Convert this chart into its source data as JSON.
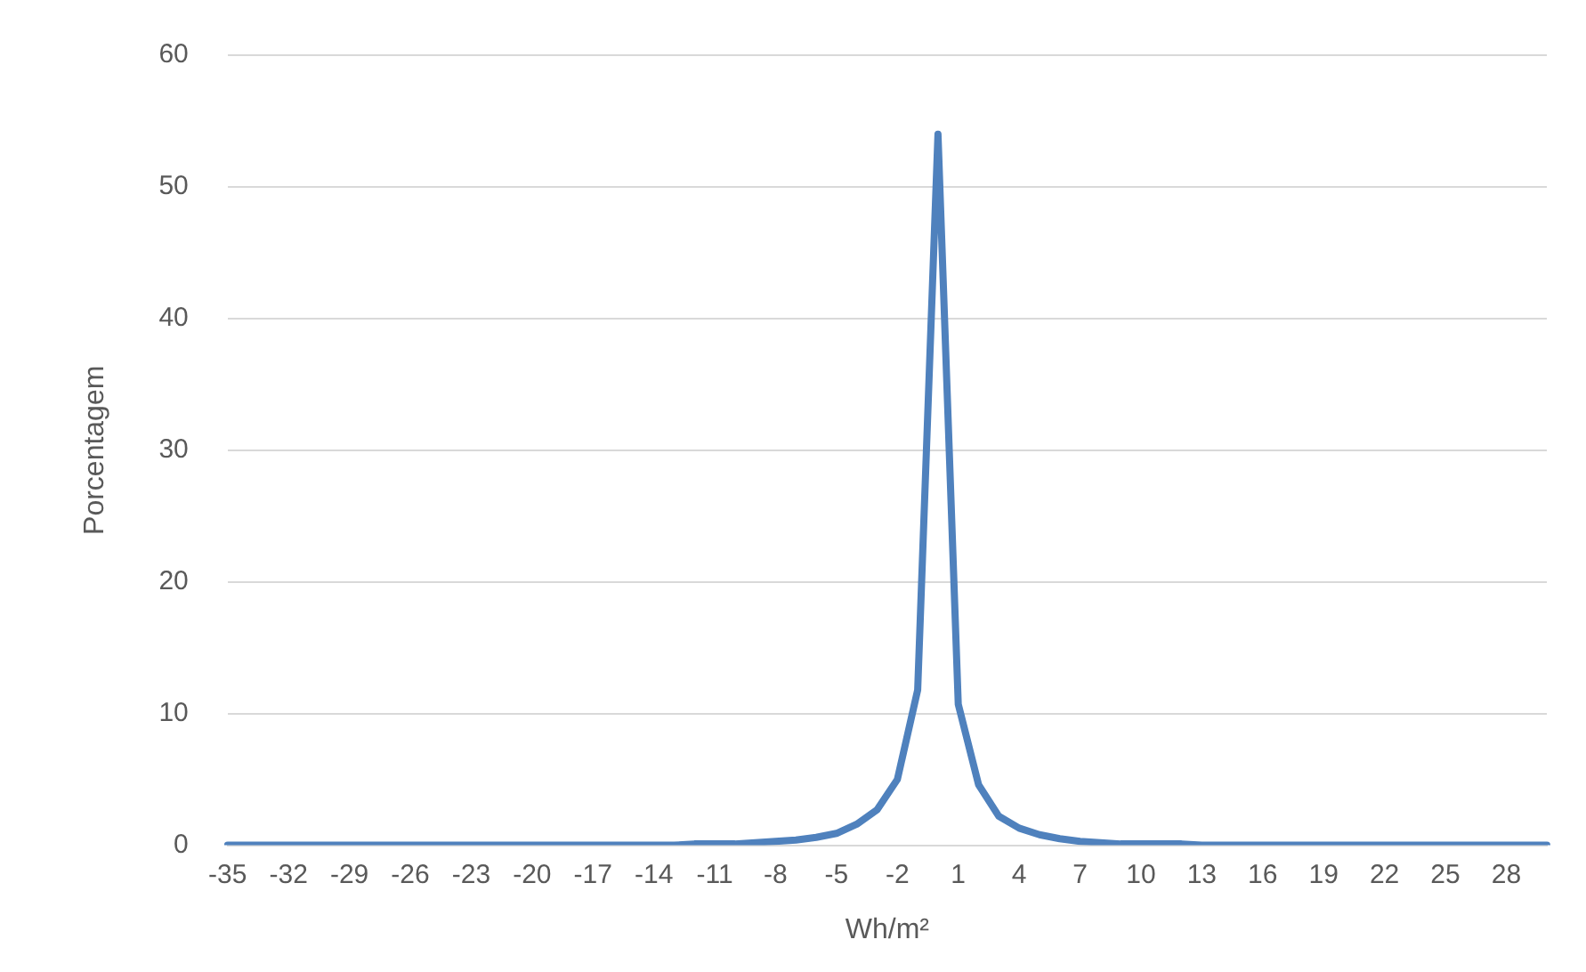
{
  "chart_data": {
    "type": "line",
    "xlabel": "Wh/m²",
    "ylabel": "Porcentagem",
    "categories": [
      "-35",
      null,
      null,
      "-32",
      null,
      null,
      "-29",
      null,
      null,
      "-26",
      null,
      null,
      "-23",
      null,
      null,
      "-20",
      null,
      null,
      "-17",
      null,
      null,
      "-14",
      null,
      null,
      "-11",
      null,
      null,
      "-8",
      null,
      null,
      "-5",
      null,
      null,
      "-2",
      null,
      null,
      "1",
      null,
      null,
      "4",
      null,
      null,
      "7",
      null,
      null,
      "10",
      null,
      null,
      "13",
      null,
      null,
      "16",
      null,
      null,
      "19",
      null,
      null,
      "22",
      null,
      null,
      "25",
      null,
      null,
      "28",
      null,
      null
    ],
    "series": [
      {
        "color": "#4f81bd",
        "values": [
          0,
          0,
          0,
          0,
          0,
          0,
          0,
          0,
          0,
          0,
          0,
          0,
          0,
          0,
          0,
          0,
          0,
          0,
          0,
          0,
          0,
          0,
          0,
          0.1,
          0.1,
          0.1,
          0.2,
          0.3,
          0.4,
          0.6,
          0.9,
          1.6,
          2.7,
          5,
          11.8,
          54,
          10.7,
          4.6,
          2.2,
          1.3,
          0.8,
          0.5,
          0.3,
          0.2,
          0.1,
          0.1,
          0.1,
          0.1,
          0,
          0,
          0,
          0,
          0,
          0,
          0,
          0,
          0,
          0,
          0,
          0,
          0,
          0,
          0,
          0,
          0,
          0
        ]
      }
    ],
    "ylim": [
      0,
      60
    ],
    "yticks": [
      0,
      10,
      20,
      30,
      40,
      50,
      60
    ],
    "grid": "y",
    "legend": false,
    "marker": "none",
    "line_style": "solid"
  }
}
